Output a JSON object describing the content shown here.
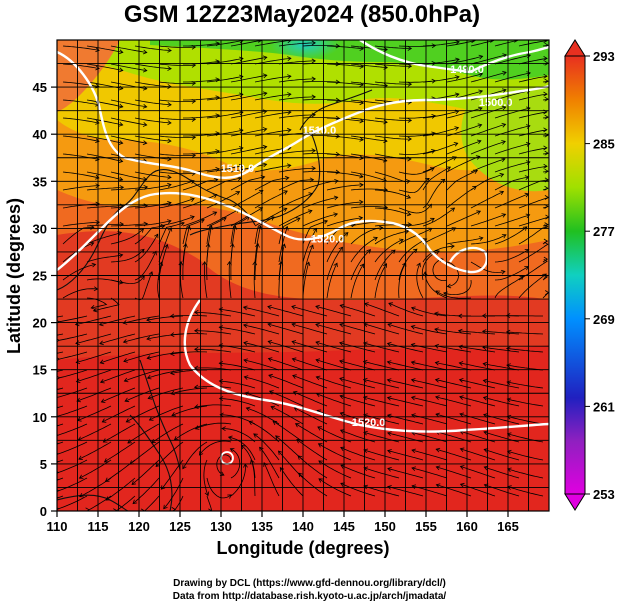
{
  "chart_data": {
    "type": "heatmap",
    "title": "GSM 12Z23May2024 (850.0hPa)",
    "xlabel": "Longitude (degrees)",
    "ylabel": "Latitude  (degrees)",
    "xlim": [
      110,
      170
    ],
    "ylim": [
      0,
      50
    ],
    "x_ticks": [
      110,
      115,
      120,
      125,
      130,
      135,
      140,
      145,
      150,
      155,
      160,
      165
    ],
    "y_ticks": [
      0,
      5,
      10,
      15,
      20,
      25,
      30,
      35,
      40,
      45
    ],
    "grid": true,
    "colorbar": {
      "position": "right",
      "min": 253,
      "max": 293,
      "ticks": [
        253,
        261,
        269,
        277,
        285,
        293
      ],
      "colors": [
        "#e000e0",
        "#2020c0",
        "#0090ff",
        "#10d0d0",
        "#20c020",
        "#a0e000",
        "#f0d000",
        "#f08000",
        "#e83020"
      ]
    },
    "contour_labels": [
      {
        "text": "1490.0",
        "lon": 160,
        "lat": 46.5
      },
      {
        "text": "1500.0",
        "lon": 163.5,
        "lat": 43
      },
      {
        "text": "1510.0",
        "lon": 142,
        "lat": 40
      },
      {
        "text": "1510.0",
        "lon": 132,
        "lat": 36
      },
      {
        "text": "1520.0",
        "lon": 143,
        "lat": 28.5
      },
      {
        "text": "1520.0",
        "lon": 148,
        "lat": 9
      }
    ]
  },
  "credits": {
    "line1": "Drawing by DCL (https://www.gfd-dennou.org/library/dcl/)",
    "line2": "Data from http://database.rish.kyoto-u.ac.jp/arch/jmadata/"
  }
}
